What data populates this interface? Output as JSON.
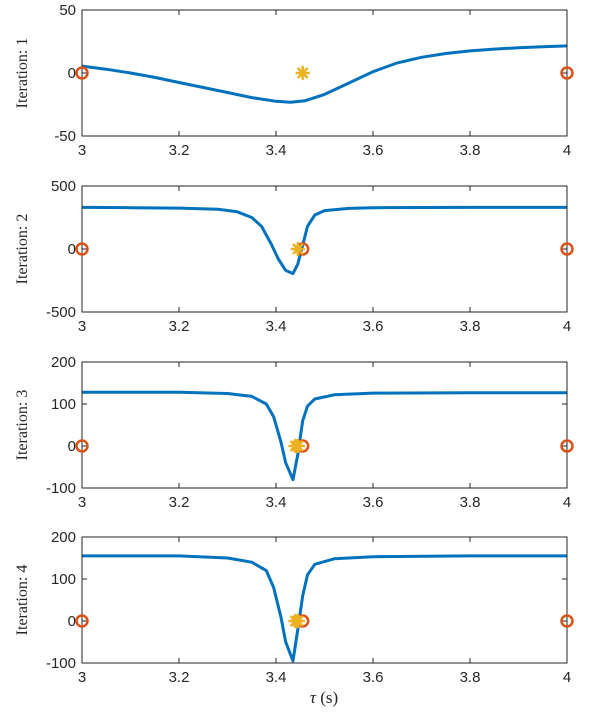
{
  "chart_data": {
    "type": "line",
    "xlabel_var": "τ",
    "xlabel_unit": " (s)",
    "colors": {
      "curve": "#0072BD",
      "circle": "#D95319",
      "star": "#EDB120",
      "axis": "#262626"
    },
    "xlim": [
      3,
      4
    ],
    "xticks": [
      3,
      3.2,
      3.4,
      3.6,
      3.8,
      4
    ],
    "xtick_labels": [
      "3",
      "3.2",
      "3.4",
      "3.6",
      "3.8",
      "4"
    ],
    "panels": [
      {
        "ylabel": "Iteration: 1",
        "ylim": [
          -50,
          50
        ],
        "yticks": [
          -50,
          0,
          50
        ],
        "ytick_labels": [
          "-50",
          "0",
          "50"
        ],
        "series": [
          {
            "values": [
              [
                3.0,
                5.5
              ],
              [
                3.05,
                3.0
              ],
              [
                3.1,
                0.0
              ],
              [
                3.15,
                -3.5
              ],
              [
                3.2,
                -7.5
              ],
              [
                3.25,
                -11.5
              ],
              [
                3.3,
                -15.5
              ],
              [
                3.35,
                -19.5
              ],
              [
                3.4,
                -22.5
              ],
              [
                3.43,
                -23.2
              ],
              [
                3.46,
                -22.0
              ],
              [
                3.5,
                -17.0
              ],
              [
                3.55,
                -8.0
              ],
              [
                3.6,
                1.0
              ],
              [
                3.65,
                8.0
              ],
              [
                3.7,
                12.5
              ],
              [
                3.75,
                15.5
              ],
              [
                3.8,
                17.5
              ],
              [
                3.85,
                19.0
              ],
              [
                3.9,
                20.0
              ],
              [
                3.95,
                20.8
              ],
              [
                4.0,
                21.5
              ]
            ]
          }
        ],
        "circles": [
          [
            3.0,
            0
          ],
          [
            4.0,
            0
          ]
        ],
        "stars": [
          [
            3.455,
            0
          ]
        ]
      },
      {
        "ylabel": "Iteration: 2",
        "ylim": [
          -500,
          500
        ],
        "yticks": [
          -500,
          0,
          500
        ],
        "ytick_labels": [
          "-500",
          "0",
          "500"
        ],
        "series": [
          {
            "values": [
              [
                3.0,
                330
              ],
              [
                3.1,
                328
              ],
              [
                3.2,
                325
              ],
              [
                3.28,
                315
              ],
              [
                3.32,
                295
              ],
              [
                3.35,
                250
              ],
              [
                3.37,
                180
              ],
              [
                3.39,
                40
              ],
              [
                3.405,
                -80
              ],
              [
                3.42,
                -170
              ],
              [
                3.435,
                -195
              ],
              [
                3.445,
                -120
              ],
              [
                3.455,
                30
              ],
              [
                3.465,
                180
              ],
              [
                3.48,
                270
              ],
              [
                3.5,
                305
              ],
              [
                3.55,
                322
              ],
              [
                3.6,
                328
              ],
              [
                3.8,
                330
              ],
              [
                4.0,
                330
              ]
            ]
          }
        ],
        "circles": [
          [
            3.0,
            0
          ],
          [
            3.455,
            0
          ],
          [
            4.0,
            0
          ]
        ],
        "stars": [
          [
            3.445,
            0
          ]
        ]
      },
      {
        "ylabel": "Iteration: 3",
        "ylim": [
          -100,
          200
        ],
        "yticks": [
          -100,
          0,
          100,
          200
        ],
        "ytick_labels": [
          "-100",
          "0",
          "100",
          "200"
        ],
        "series": [
          {
            "values": [
              [
                3.0,
                128
              ],
              [
                3.2,
                128
              ],
              [
                3.3,
                125
              ],
              [
                3.35,
                118
              ],
              [
                3.38,
                100
              ],
              [
                3.395,
                70
              ],
              [
                3.41,
                10
              ],
              [
                3.42,
                -40
              ],
              [
                3.435,
                -80
              ],
              [
                3.445,
                -20
              ],
              [
                3.455,
                60
              ],
              [
                3.465,
                95
              ],
              [
                3.48,
                112
              ],
              [
                3.52,
                122
              ],
              [
                3.6,
                126
              ],
              [
                3.8,
                127
              ],
              [
                4.0,
                127
              ]
            ]
          }
        ],
        "circles": [
          [
            3.0,
            0
          ],
          [
            3.455,
            0
          ],
          [
            4.0,
            0
          ]
        ],
        "stars": [
          [
            3.44,
            0
          ],
          [
            3.445,
            0
          ]
        ]
      },
      {
        "ylabel": "Iteration: 4",
        "ylim": [
          -100,
          200
        ],
        "yticks": [
          -100,
          0,
          100,
          200
        ],
        "ytick_labels": [
          "-100",
          "0",
          "100",
          "200"
        ],
        "series": [
          {
            "values": [
              [
                3.0,
                155
              ],
              [
                3.2,
                155
              ],
              [
                3.3,
                150
              ],
              [
                3.35,
                140
              ],
              [
                3.38,
                120
              ],
              [
                3.395,
                80
              ],
              [
                3.41,
                10
              ],
              [
                3.42,
                -50
              ],
              [
                3.435,
                -95
              ],
              [
                3.445,
                -20
              ],
              [
                3.455,
                60
              ],
              [
                3.465,
                110
              ],
              [
                3.48,
                135
              ],
              [
                3.52,
                148
              ],
              [
                3.6,
                153
              ],
              [
                3.8,
                155
              ],
              [
                4.0,
                155
              ]
            ]
          }
        ],
        "circles": [
          [
            3.0,
            0
          ],
          [
            3.455,
            0
          ],
          [
            4.0,
            0
          ]
        ],
        "stars": [
          [
            3.44,
            0
          ],
          [
            3.445,
            0
          ]
        ]
      }
    ]
  }
}
